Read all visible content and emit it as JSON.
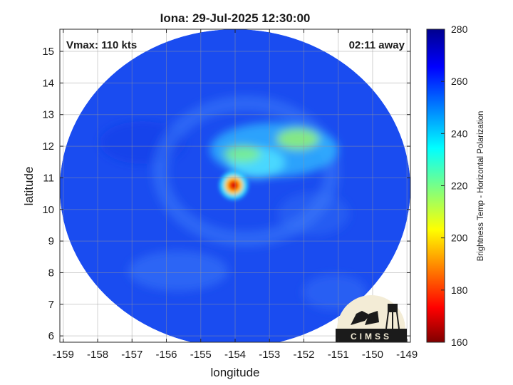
{
  "chart_data": {
    "type": "heatmap",
    "title": "Iona: 29-Jul-2025 12:30:00",
    "xlabel": "longitude",
    "ylabel": "latitude",
    "xlim": [
      -159.1,
      -148.9
    ],
    "ylim": [
      5.8,
      15.7
    ],
    "x_ticks": [
      -159,
      -158,
      -157,
      -156,
      -155,
      -154,
      -153,
      -152,
      -151,
      -150,
      -149
    ],
    "y_ticks": [
      6,
      7,
      8,
      9,
      10,
      11,
      12,
      13,
      14,
      15
    ],
    "grid": true,
    "annotations": {
      "vmax": "Vmax: 110 kts",
      "time_away": "02:11 away"
    },
    "colorbar": {
      "label": "Brightness Temp - Horizontal Polarization",
      "range": [
        160,
        280
      ],
      "ticks": [
        160,
        180,
        200,
        220,
        240,
        260,
        280
      ],
      "colormap": "jet"
    },
    "swath": {
      "center_lon": -154.0,
      "center_lat": 10.8,
      "background_temp": 260
    },
    "features": [
      {
        "name": "eye",
        "lon": -154.0,
        "lat": 10.8,
        "temp": 178
      },
      {
        "name": "eyewall",
        "lon": -154.0,
        "lat": 10.8,
        "temp": 228
      },
      {
        "name": "northern band",
        "lon": -153.7,
        "lat": 11.8,
        "temp": 232
      },
      {
        "name": "northeast band",
        "lon": -152.4,
        "lat": 12.2,
        "temp": 228
      },
      {
        "name": "inner band",
        "lon": -153.2,
        "lat": 11.5,
        "temp": 240
      }
    ],
    "logo": {
      "text": "CIMSS"
    }
  }
}
